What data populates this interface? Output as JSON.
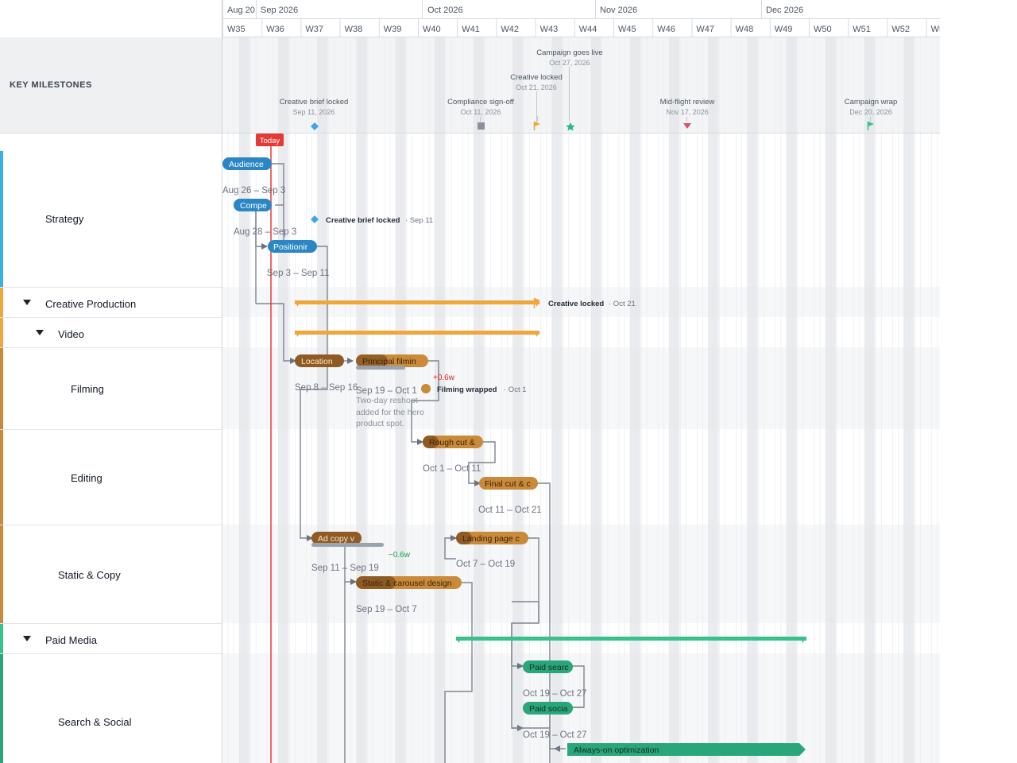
{
  "months": [
    {
      "label": "Aug 20",
      "x": 0
    },
    {
      "label": "Sep 2026",
      "x": 1
    },
    {
      "label": "Oct 2026",
      "x": 2
    },
    {
      "label": "Nov 2026",
      "x": 3
    },
    {
      "label": "Dec 2026",
      "x": 4
    }
  ],
  "weeks": [
    "W35",
    "W36",
    "W37",
    "W38",
    "W39",
    "W40",
    "W41",
    "W42",
    "W43",
    "W44",
    "W45",
    "W46",
    "W47",
    "W48",
    "W49",
    "W50",
    "W51",
    "W52",
    "W53"
  ],
  "milestones_title": "KEY MILESTONES",
  "milestones": [
    {
      "name": "Creative brief locked",
      "date": "Sep 11, 2026",
      "shape": "diamond",
      "color": "#3ba7e4"
    },
    {
      "name": "Compliance sign-off",
      "date": "Oct 11, 2026",
      "shape": "square",
      "color": "#8a919c"
    },
    {
      "name": "Creative locked",
      "date": "Oct 21, 2026",
      "shape": "flag",
      "color": "#f0a63a"
    },
    {
      "name": "Campaign goes live",
      "date": "Oct 27, 2026",
      "shape": "star",
      "color": "#2bb88a"
    },
    {
      "name": "Mid-flight review",
      "date": "Nov 17, 2026",
      "shape": "triangle",
      "color": "#e0506b"
    },
    {
      "name": "Campaign wrap",
      "date": "Dec 20, 2026",
      "shape": "flag",
      "color": "#36c28a"
    }
  ],
  "today_label": "Today",
  "groups": [
    {
      "name": "Strategy",
      "color": "#3aaee6",
      "collapsible": false
    },
    {
      "name": "Creative Production",
      "color": "#f0a63a",
      "collapsible": true
    },
    {
      "name": "Video",
      "color": "#f0a63a",
      "collapsible": true
    },
    {
      "name": "Filming",
      "color": "#c98a3a",
      "collapsible": false
    },
    {
      "name": "Editing",
      "color": "#c98a3a",
      "collapsible": false
    },
    {
      "name": "Static & Copy",
      "color": "#c98a3a",
      "collapsible": false
    },
    {
      "name": "Paid Media",
      "color": "#36c28a",
      "collapsible": true
    },
    {
      "name": "Search & Social",
      "color": "#2aa77a",
      "collapsible": false
    }
  ],
  "tasks": [
    {
      "label": "Audience",
      "dates": "Aug 26 – Sep 3"
    },
    {
      "label": "Compe",
      "dates": "Aug 28 – Sep 3"
    },
    {
      "label": "Positionir",
      "dates": "Sep 3 – Sep 11"
    },
    {
      "label": "Location",
      "dates": "Sep 8 – Sep 16"
    },
    {
      "label": "Principal filmin",
      "dates": "Sep 19 – Oct 1",
      "delta": "+0.6w",
      "note": "Two-day reshoot added for the hero product spot."
    },
    {
      "label": "Rough cut &",
      "dates": "Oct 1 – Oct 11"
    },
    {
      "label": "Final cut & c",
      "dates": "Oct 11 – Oct 21"
    },
    {
      "label": "Ad copy v",
      "dates": "Sep 11 – Sep 19",
      "delta": "−0.6w"
    },
    {
      "label": "Landing page c",
      "dates": "Oct 7 – Oct 19"
    },
    {
      "label": "Static & carousel design",
      "dates": "Sep 19 – Oct 7"
    },
    {
      "label": "Paid searc",
      "dates": "Oct 19 – Oct 27"
    },
    {
      "label": "Paid socia",
      "dates": "Oct 19 – Oct 27"
    },
    {
      "label": "Always-on optimization",
      "dates": ""
    }
  ],
  "inline_milestones": [
    {
      "name": "Creative brief locked",
      "date": "· Sep 11"
    },
    {
      "name": "Creative locked",
      "date": "· Oct 21"
    },
    {
      "name": "Filming wrapped",
      "date": "· Oct 1"
    }
  ]
}
